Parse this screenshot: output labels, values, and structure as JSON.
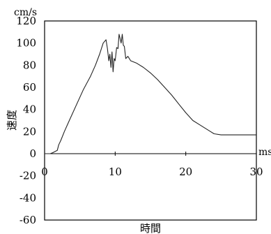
{
  "chart_data": {
    "type": "line",
    "title": "",
    "xlabel": "時間",
    "ylabel": "速度",
    "x_unit": "ms",
    "y_unit": "cm/s",
    "xlim": [
      0,
      30
    ],
    "ylim": [
      -60,
      120
    ],
    "x_ticks": [
      0,
      10,
      20,
      30
    ],
    "y_ticks": [
      120,
      100,
      80,
      60,
      40,
      20,
      0,
      -20,
      -40,
      -60
    ],
    "grid": false,
    "legend": "none",
    "line_color": "#222222",
    "series": [
      {
        "x": [
          0,
          0.8,
          1.2,
          1.8,
          2.0,
          2.3,
          2.8,
          3.5,
          4.5,
          5.5,
          6.5,
          7.2,
          7.8,
          8.3,
          8.7,
          8.9,
          9.1,
          9.25,
          9.4,
          9.55,
          9.7,
          9.85,
          10.0,
          10.2,
          10.4,
          10.55,
          10.7,
          10.85,
          11.0,
          11.15,
          11.3,
          11.5,
          11.8,
          12.2,
          13.0,
          14.0,
          15.0,
          16.0,
          17.0,
          18.0,
          19.0,
          20.0,
          21.0,
          22.0,
          23.0,
          23.5,
          24.0,
          25.0,
          26.0,
          27.0,
          28.0,
          29.0,
          30.0
        ],
        "y": [
          0,
          0,
          1,
          3,
          8,
          12,
          20,
          30,
          44,
          58,
          70,
          80,
          90,
          100,
          103,
          95,
          84,
          90,
          78,
          92,
          74,
          86,
          84,
          96,
          95,
          108,
          104,
          100,
          108,
          98,
          97,
          86,
          88,
          84,
          82,
          78,
          73,
          67,
          60,
          53,
          45,
          37,
          30,
          26,
          22,
          20,
          18,
          17,
          17,
          17,
          17,
          17,
          17
        ]
      }
    ]
  }
}
